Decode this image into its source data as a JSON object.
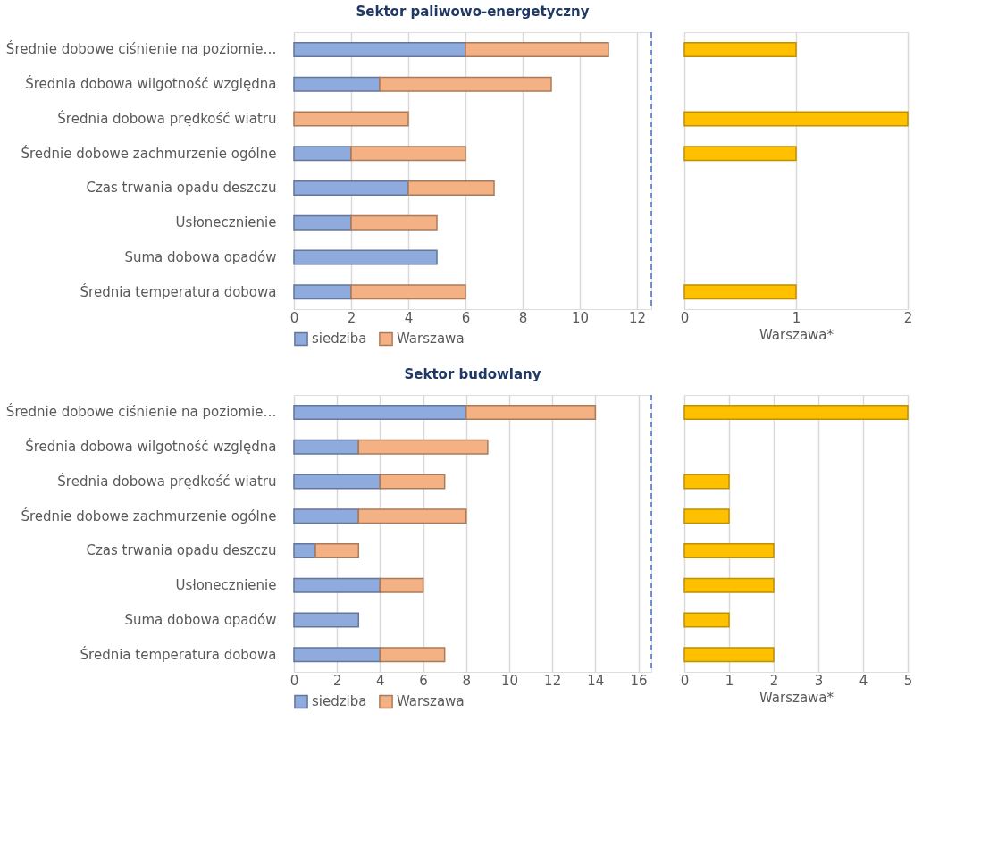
{
  "chart_data": [
    {
      "type": "bar",
      "orientation": "horizontal",
      "stacked": true,
      "title": "Sektor paliwowo-energetyczny",
      "categories": [
        "Średnie dobowe ciśnienie na poziomie…",
        "Średnia dobowa wilgotność względna",
        "Średnia dobowa prędkość wiatru",
        "Średnie dobowe zachmurzenie ogólne",
        "Czas trwania opadu deszczu",
        "Usłonecznienie",
        "Suma dobowa opadów",
        "Średnia temperatura dobowa"
      ],
      "series": [
        {
          "name": "siedziba",
          "color": "#8faadc",
          "values": [
            6,
            3,
            null,
            2,
            4,
            2,
            5,
            2
          ]
        },
        {
          "name": "Warszawa",
          "color": "#f4b183",
          "values": [
            5,
            6,
            4,
            4,
            3,
            3,
            null,
            4
          ]
        }
      ],
      "xlim": [
        0,
        12.5
      ],
      "xticks": [
        0,
        2,
        4,
        6,
        8,
        10,
        12
      ],
      "grid": "x",
      "legend": "bottom",
      "ref_lines": [
        {
          "axis": "x",
          "value": 12.5,
          "color": "#4472c4",
          "line_style": "dashed"
        }
      ]
    },
    {
      "type": "bar",
      "orientation": "horizontal",
      "xlabel": "Warszawa*",
      "categories": [
        null,
        null,
        null,
        null,
        null,
        null,
        null,
        null
      ],
      "values": [
        1,
        null,
        2,
        1,
        null,
        null,
        null,
        1
      ],
      "color": "#ffc000",
      "xlim": [
        0,
        2
      ],
      "xticks": [
        0,
        1,
        2
      ],
      "grid": "x"
    },
    {
      "type": "bar",
      "orientation": "horizontal",
      "stacked": true,
      "title": "Sektor budowlany",
      "categories": [
        "Średnie dobowe ciśnienie na poziomie…",
        "Średnia dobowa wilgotność względna",
        "Średnia dobowa prędkość wiatru",
        "Średnie dobowe zachmurzenie ogólne",
        "Czas trwania opadu deszczu",
        "Usłonecznienie",
        "Suma dobowa opadów",
        "Średnia temperatura dobowa"
      ],
      "series": [
        {
          "name": "siedziba",
          "color": "#8faadc",
          "values": [
            8,
            3,
            4,
            3,
            1,
            4,
            3,
            4
          ]
        },
        {
          "name": "Warszawa",
          "color": "#f4b183",
          "values": [
            6,
            6,
            3,
            5,
            2,
            2,
            null,
            3
          ]
        }
      ],
      "xlim": [
        0,
        16.6
      ],
      "xticks": [
        0,
        2,
        4,
        6,
        8,
        10,
        12,
        14,
        16
      ],
      "grid": "x",
      "legend": "bottom",
      "ref_lines": [
        {
          "axis": "x",
          "value": 16.6,
          "color": "#4472c4",
          "line_style": "dashed"
        }
      ]
    },
    {
      "type": "bar",
      "orientation": "horizontal",
      "xlabel": "Warszawa*",
      "categories": [
        null,
        null,
        null,
        null,
        null,
        null,
        null,
        null
      ],
      "values": [
        5,
        null,
        1,
        1,
        2,
        2,
        1,
        2
      ],
      "color": "#ffc000",
      "xlim": [
        0,
        5
      ],
      "xticks": [
        0,
        1,
        2,
        3,
        4,
        5
      ],
      "grid": "x"
    }
  ]
}
